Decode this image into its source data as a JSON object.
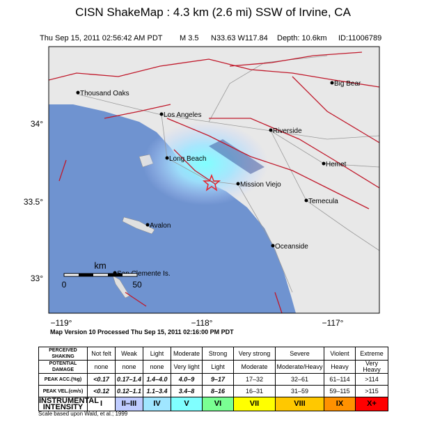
{
  "header": {
    "title": "CISN ShakeMap : 4.3 km (2.6 mi) SSW of Irvine, CA",
    "subtitle": [
      "Thu Sep 15, 2011 02:56:42 AM PDT",
      "M 3.5",
      "N33.63 W117.84",
      "Depth: 10.6km",
      "ID:11006789"
    ]
  },
  "map": {
    "cities": [
      "Thousand Oaks",
      "Los Angeles",
      "Big Bear",
      "Riverside",
      "Long Beach",
      "Hemet",
      "Mission Viejo",
      "Temecula",
      "Avalon",
      "Oceanside",
      "San Clemente Is."
    ],
    "lat_labels": [
      "34°",
      "33.5°",
      "33°"
    ],
    "lon_labels": [
      "−119°",
      "−118°",
      "−117°"
    ],
    "scale": {
      "unit": "km",
      "start": "0",
      "end": "50"
    }
  },
  "version": "Map Version 10 Processed Thu Sep 15, 2011 02:16:00 PM PDT",
  "table": {
    "rows": [
      [
        "PERCEIVED SHAKING",
        "Not felt",
        "Weak",
        "Light",
        "Moderate",
        "Strong",
        "Very strong",
        "Severe",
        "Violent",
        "Extreme"
      ],
      [
        "POTENTIAL DAMAGE",
        "none",
        "none",
        "none",
        "Very light",
        "Light",
        "Moderate",
        "Moderate/Heavy",
        "Heavy",
        "Very Heavy"
      ],
      [
        "PEAK ACC.(%g)",
        "<0.17",
        "0.17–1.4",
        "1.4–4.0",
        "4.0–9",
        "9–17",
        "17–32",
        "32–61",
        "61–114",
        ">114"
      ],
      [
        "PEAK VEL.(cm/s)",
        "<0.12",
        "0.12–1.1",
        "1.1–3.4",
        "3.4–8",
        "8–16",
        "16–31",
        "31–59",
        "59–115",
        ">115"
      ],
      [
        "INSTRUMENTAL INTENSITY",
        "I",
        "II–III",
        "IV",
        "V",
        "VI",
        "VII",
        "VIII",
        "IX",
        "X+"
      ]
    ]
  },
  "footnote": "Scale based upon Wald, et al.; 1999"
}
